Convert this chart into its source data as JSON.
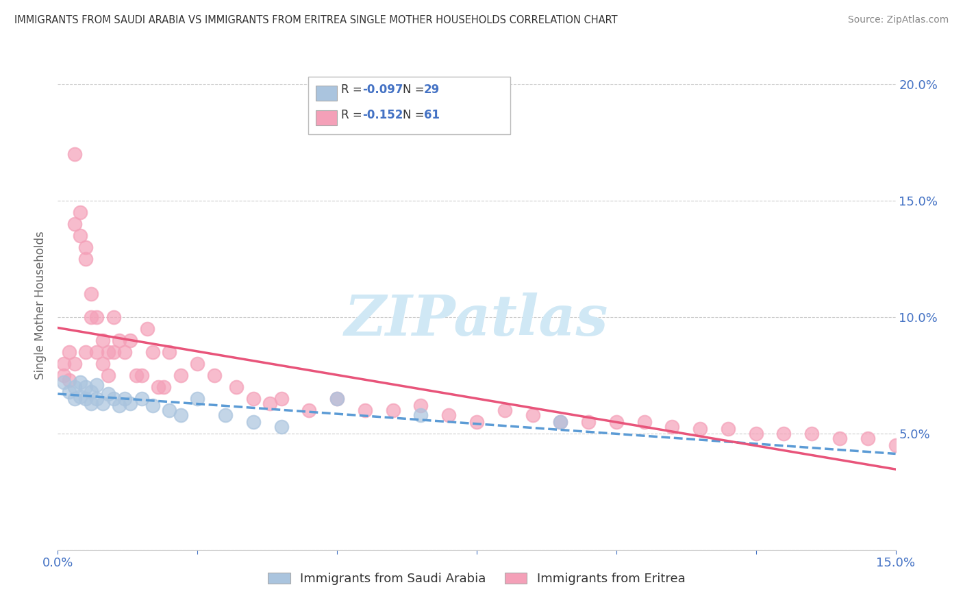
{
  "title": "IMMIGRANTS FROM SAUDI ARABIA VS IMMIGRANTS FROM ERITREA SINGLE MOTHER HOUSEHOLDS CORRELATION CHART",
  "source": "Source: ZipAtlas.com",
  "ylabel": "Single Mother Households",
  "xlim": [
    0.0,
    0.15
  ],
  "ylim": [
    0.0,
    0.21
  ],
  "color_saudi": "#aac4de",
  "color_eritrea": "#f4a0b8",
  "color_line_saudi": "#5b9bd5",
  "color_line_eritrea": "#e8547a",
  "watermark_color": "#d0e8f5",
  "saudi_x": [
    0.001,
    0.002,
    0.003,
    0.003,
    0.004,
    0.004,
    0.005,
    0.005,
    0.006,
    0.006,
    0.007,
    0.007,
    0.008,
    0.009,
    0.01,
    0.011,
    0.012,
    0.013,
    0.015,
    0.017,
    0.02,
    0.022,
    0.025,
    0.03,
    0.035,
    0.04,
    0.05,
    0.065,
    0.09
  ],
  "saudi_y": [
    0.072,
    0.068,
    0.07,
    0.065,
    0.072,
    0.066,
    0.07,
    0.065,
    0.068,
    0.063,
    0.071,
    0.065,
    0.063,
    0.067,
    0.065,
    0.062,
    0.065,
    0.063,
    0.065,
    0.062,
    0.06,
    0.058,
    0.065,
    0.058,
    0.055,
    0.053,
    0.065,
    0.058,
    0.055
  ],
  "eritrea_x": [
    0.001,
    0.001,
    0.002,
    0.002,
    0.003,
    0.003,
    0.003,
    0.004,
    0.004,
    0.005,
    0.005,
    0.005,
    0.006,
    0.006,
    0.007,
    0.007,
    0.008,
    0.008,
    0.009,
    0.009,
    0.01,
    0.01,
    0.011,
    0.012,
    0.013,
    0.014,
    0.015,
    0.016,
    0.017,
    0.018,
    0.019,
    0.02,
    0.022,
    0.025,
    0.028,
    0.032,
    0.035,
    0.038,
    0.04,
    0.045,
    0.05,
    0.055,
    0.06,
    0.065,
    0.07,
    0.075,
    0.08,
    0.085,
    0.09,
    0.095,
    0.1,
    0.105,
    0.11,
    0.115,
    0.12,
    0.125,
    0.13,
    0.135,
    0.14,
    0.145,
    0.15
  ],
  "eritrea_y": [
    0.075,
    0.08,
    0.073,
    0.085,
    0.17,
    0.08,
    0.14,
    0.135,
    0.145,
    0.13,
    0.125,
    0.085,
    0.1,
    0.11,
    0.085,
    0.1,
    0.09,
    0.08,
    0.085,
    0.075,
    0.1,
    0.085,
    0.09,
    0.085,
    0.09,
    0.075,
    0.075,
    0.095,
    0.085,
    0.07,
    0.07,
    0.085,
    0.075,
    0.08,
    0.075,
    0.07,
    0.065,
    0.063,
    0.065,
    0.06,
    0.065,
    0.06,
    0.06,
    0.062,
    0.058,
    0.055,
    0.06,
    0.058,
    0.055,
    0.055,
    0.055,
    0.055,
    0.053,
    0.052,
    0.052,
    0.05,
    0.05,
    0.05,
    0.048,
    0.048,
    0.045
  ]
}
